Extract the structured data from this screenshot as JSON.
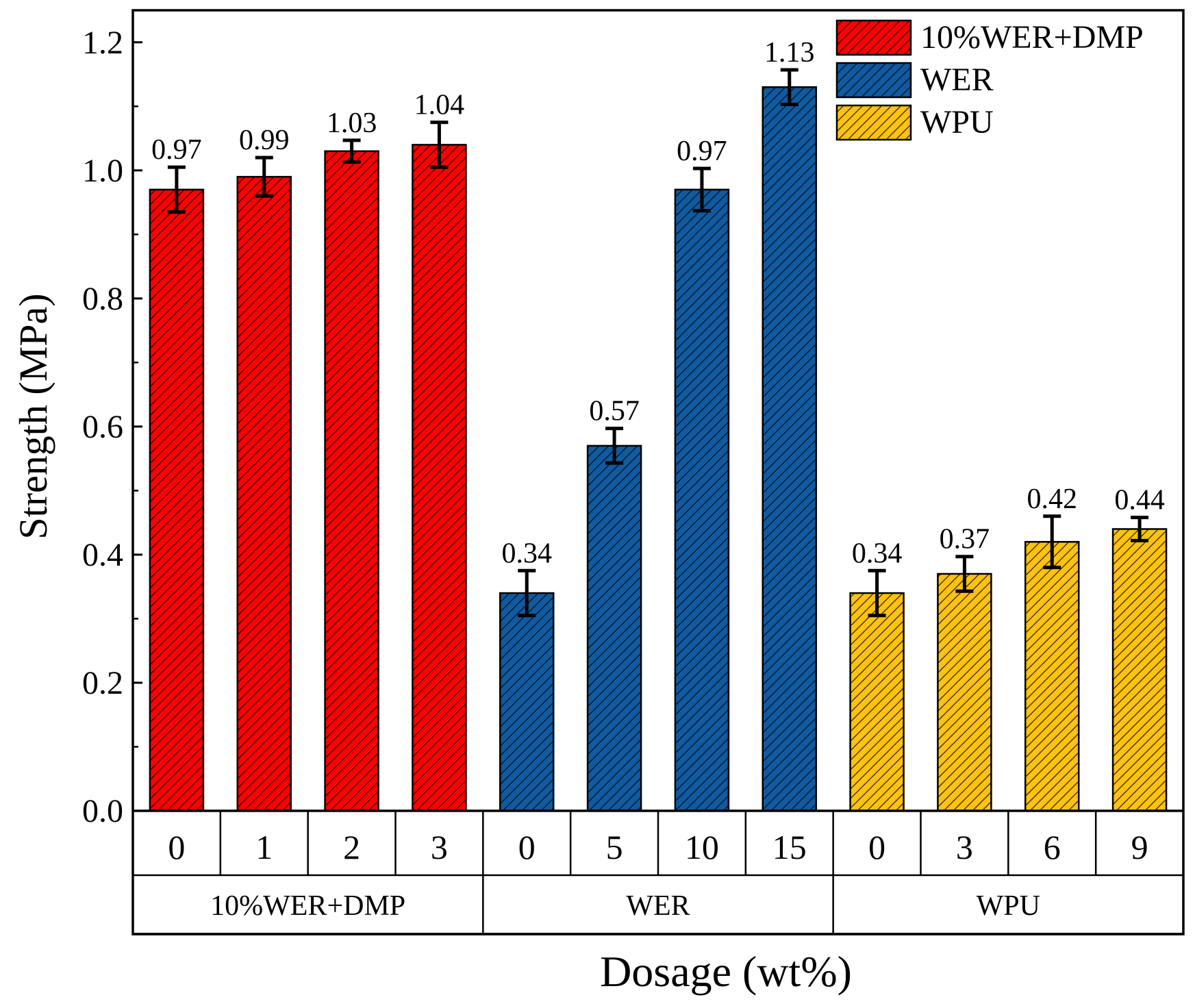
{
  "chart_data": {
    "type": "bar",
    "title": "",
    "xlabel": "Dosage (wt%)",
    "ylabel": "Strength (MPa)",
    "ylim": [
      0,
      1.25
    ],
    "yticks": [
      "0.0",
      "0.2",
      "0.4",
      "0.6",
      "0.8",
      "1.0",
      "1.2"
    ],
    "grid": false,
    "legend_position": "top-right",
    "groups": [
      {
        "name": "10%WER+DMP",
        "color": "#ff0000",
        "categories": [
          "0",
          "1",
          "2",
          "3"
        ],
        "values": [
          0.97,
          0.99,
          1.03,
          1.04
        ],
        "errors": [
          0.035,
          0.03,
          0.017,
          0.035
        ],
        "labels": [
          "0.97",
          "0.99",
          "1.03",
          "1.04"
        ]
      },
      {
        "name": "WER",
        "color": "#0f5aa0",
        "categories": [
          "0",
          "5",
          "10",
          "15"
        ],
        "values": [
          0.34,
          0.57,
          0.97,
          1.13
        ],
        "errors": [
          0.035,
          0.027,
          0.033,
          0.027
        ],
        "labels": [
          "0.34",
          "0.57",
          "0.97",
          "1.13"
        ]
      },
      {
        "name": "WPU",
        "color": "#ffc20e",
        "categories": [
          "0",
          "3",
          "6",
          "9"
        ],
        "values": [
          0.34,
          0.37,
          0.42,
          0.44
        ],
        "errors": [
          0.035,
          0.027,
          0.04,
          0.018
        ],
        "labels": [
          "0.34",
          "0.37",
          "0.42",
          "0.44"
        ]
      }
    ],
    "legend": [
      "10%WER+DMP",
      "WER",
      "WPU"
    ]
  }
}
